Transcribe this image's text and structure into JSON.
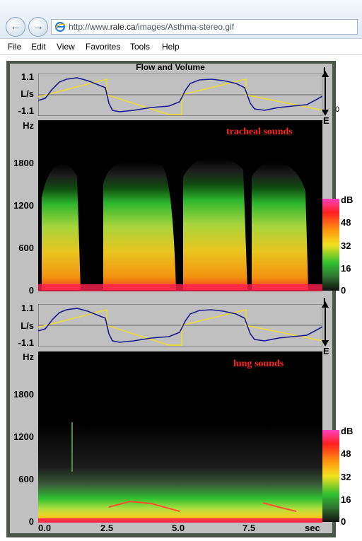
{
  "browser": {
    "url_prefix": "http://www.",
    "url_domain": "rale.ca",
    "url_path": "/images/Asthma-stereo.gif",
    "back_icon": "back-arrow-icon",
    "forward_icon": "forward-arrow-icon",
    "page_icon": "ie-page-icon"
  },
  "menu": [
    "File",
    "Edit",
    "View",
    "Favorites",
    "Tools",
    "Help"
  ],
  "figure": {
    "title": "Flow and Volume",
    "flow_panel": {
      "tick_top": "1.1",
      "unit": "L/s",
      "tick_bottom": "-1.1",
      "inspiration": "I",
      "expiration": "E",
      "right_tick": "0"
    },
    "tracheal": {
      "label": "tracheal sounds",
      "unit": "Hz",
      "yticks": [
        "1800",
        "1200",
        "600",
        "0"
      ]
    },
    "lung": {
      "label": "lung sounds",
      "unit": "Hz",
      "yticks": [
        "1800",
        "1200",
        "600",
        "0"
      ]
    },
    "colorbar": {
      "unit": "dB",
      "ticks": [
        "48",
        "32",
        "16",
        "0"
      ]
    },
    "xticks": [
      "0.0",
      "2.5",
      "5.0",
      "7.5"
    ],
    "xunit": "sec"
  }
}
